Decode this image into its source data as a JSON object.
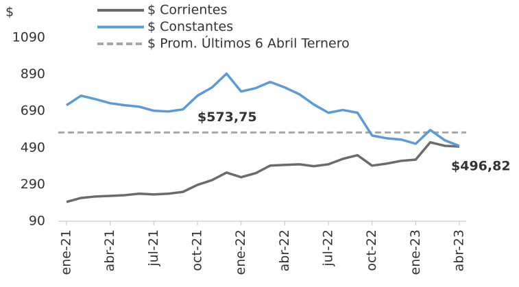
{
  "chart_data": {
    "type": "line",
    "y_label": "$",
    "categories": [
      "ene-21",
      null,
      null,
      "abr-21",
      null,
      null,
      "jul-21",
      null,
      null,
      "oct-21",
      null,
      null,
      "ene-22",
      null,
      null,
      "abr-22",
      null,
      null,
      "jul-22",
      null,
      null,
      "oct-22",
      null,
      null,
      "ene-23",
      null,
      null,
      "abr-23"
    ],
    "series": [
      {
        "name": "$ Corrientes",
        "color": "#6b6b6b",
        "values": [
          195,
          217,
          225,
          228,
          232,
          240,
          236,
          240,
          250,
          288,
          314,
          355,
          330,
          352,
          393,
          397,
          400,
          390,
          400,
          430,
          450,
          393,
          404,
          419,
          426,
          520,
          501,
          496.82
        ],
        "value_labels": [
          null,
          null,
          null,
          null,
          null,
          null,
          null,
          null,
          null,
          null,
          null,
          null,
          null,
          null,
          null,
          null,
          null,
          null,
          null,
          null,
          null,
          null,
          null,
          null,
          null,
          null,
          null,
          "$496,82"
        ]
      },
      {
        "name": "$ Constantes",
        "color": "#5b9bd5",
        "values": [
          722,
          774,
          755,
          733,
          722,
          714,
          692,
          688,
          699,
          774,
          819,
          894,
          797,
          815,
          849,
          819,
          782,
          726,
          681,
          696,
          681,
          557,
          542,
          535,
          512,
          587,
          531,
          500
        ]
      }
    ],
    "reference_line": {
      "name": "$ Prom. Últimos 6 Abril Ternero",
      "color": "#a6a6a6",
      "dashed": true,
      "value": 573.75,
      "value_label": "$573,75"
    },
    "ylim": [
      90,
      1090
    ],
    "yticks": [
      90,
      290,
      490,
      690,
      890,
      1090
    ],
    "grid": false
  }
}
